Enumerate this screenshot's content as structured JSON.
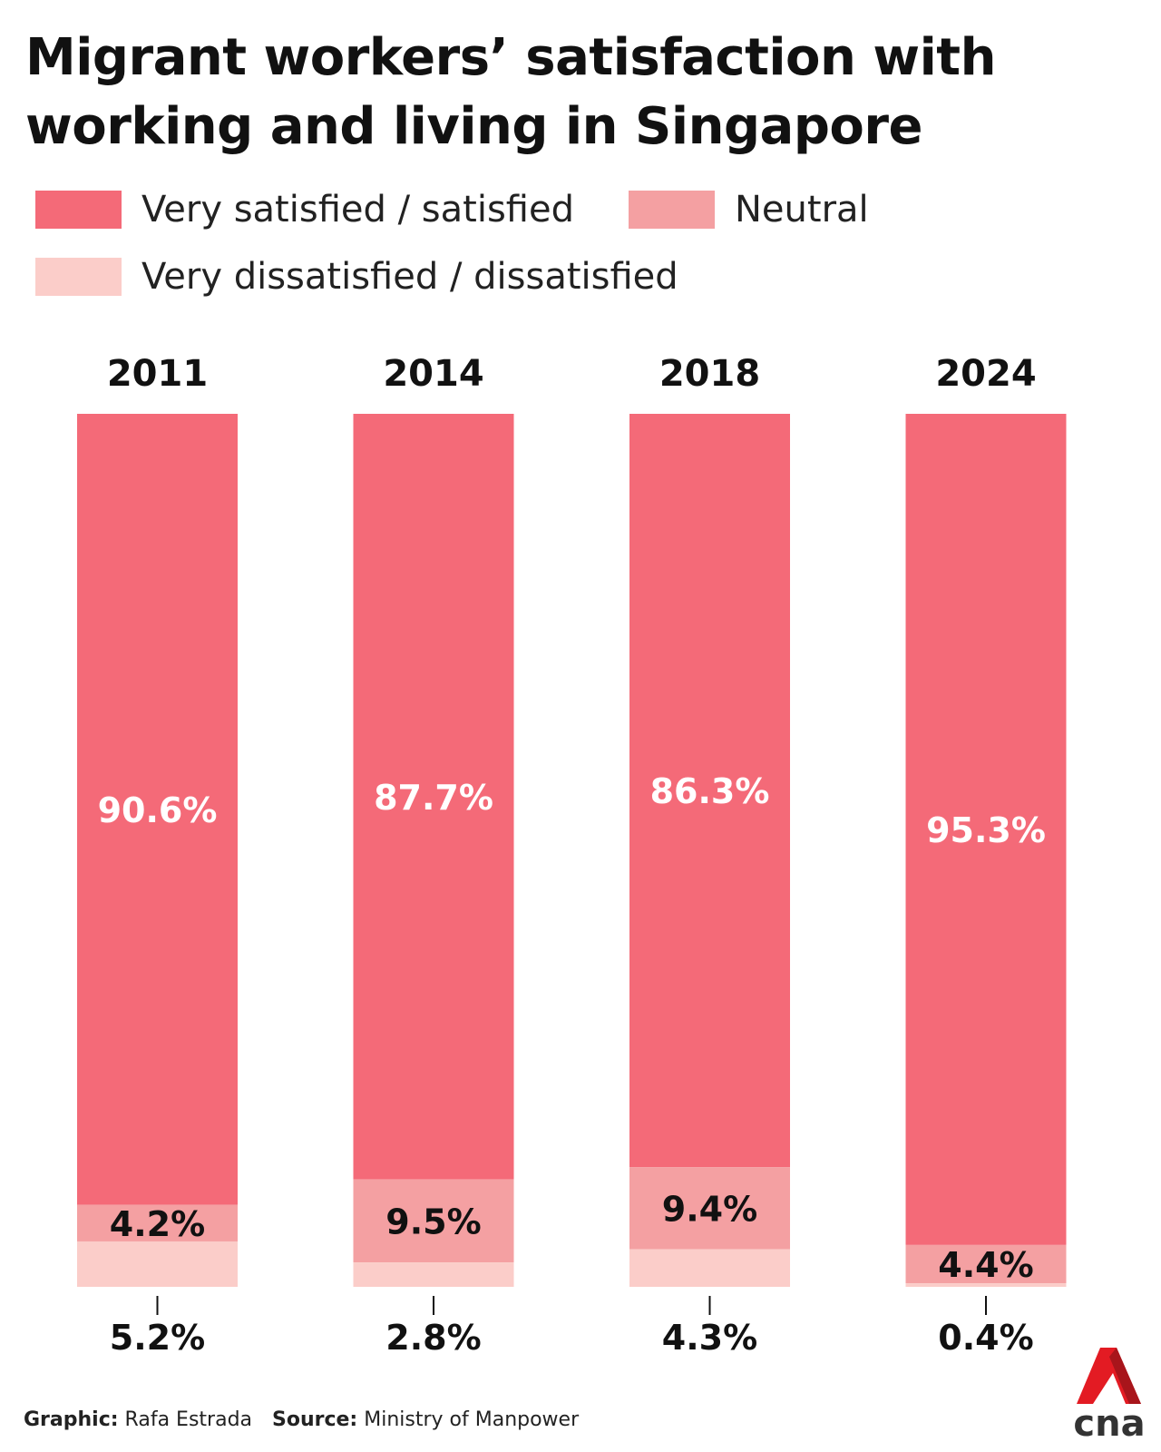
{
  "title": "Migrant workers’ satisfaction with working and living in Singapore",
  "footer": {
    "graphic_label": "Graphic:",
    "graphic_value": "Rafa Estrada",
    "source_label": "Source:",
    "source_value": "Ministry of Manpower"
  },
  "logo_text": "cna",
  "chart_data": {
    "type": "bar",
    "stacked": true,
    "title": "Migrant workers’ satisfaction with working and living in Singapore",
    "categories": [
      "2011",
      "2014",
      "2018",
      "2024"
    ],
    "series": [
      {
        "name": "Very satisfied / satisfied",
        "color": "#f46a78",
        "values": [
          90.6,
          87.7,
          86.3,
          95.3
        ],
        "labels": [
          "90.6%",
          "87.7%",
          "86.3%",
          "95.3%"
        ]
      },
      {
        "name": "Neutral",
        "color": "#f4a0a2",
        "values": [
          4.2,
          9.5,
          9.4,
          4.4
        ],
        "labels": [
          "4.2%",
          "9.5%",
          "9.4%",
          "4.4%"
        ]
      },
      {
        "name": "Very dissatisfied / dissatisfied",
        "color": "#fbcdc9",
        "values": [
          5.2,
          2.8,
          4.3,
          0.4
        ],
        "labels": [
          "5.2%",
          "2.8%",
          "4.3%",
          "0.4%"
        ]
      }
    ],
    "ylim": [
      0,
      100
    ],
    "legend_position": "top-left",
    "grid": false,
    "xlabel": "",
    "ylabel": ""
  }
}
